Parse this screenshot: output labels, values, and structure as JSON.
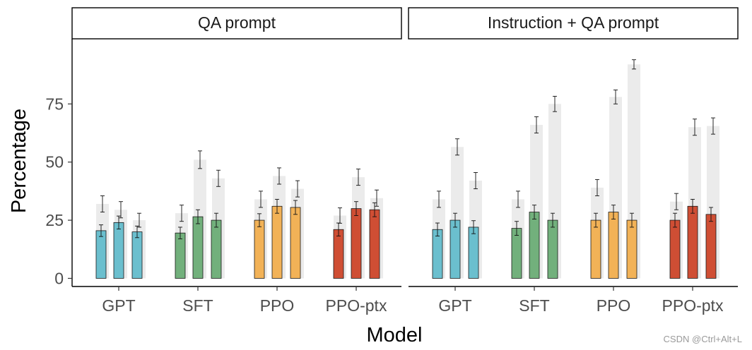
{
  "chart_data": {
    "type": "bar",
    "xlabel": "Model",
    "ylabel": "Percentage",
    "ylim": [
      -3.5,
      103
    ],
    "yticks": [
      0,
      25,
      50,
      75
    ],
    "categories": [
      "GPT",
      "SFT",
      "PPO",
      "PPO-ptx"
    ],
    "colors": {
      "GPT": "#6bbfce",
      "SFT": "#72b07c",
      "PPO": "#f2b257",
      "PPO-ptx": "#cf4e34",
      "background": "#ebebeb"
    },
    "facets": [
      {
        "title": "QA prompt",
        "background_bars": {
          "GPT": [
            {
              "value": 32,
              "err": 3.5
            },
            {
              "value": 29.5,
              "err": 3.5
            },
            {
              "value": 25,
              "err": 3
            }
          ],
          "SFT": [
            {
              "value": 28,
              "err": 3.5
            },
            {
              "value": 51,
              "err": 3.8
            },
            {
              "value": 43,
              "err": 3.5
            }
          ],
          "PPO": [
            {
              "value": 34,
              "err": 3.5
            },
            {
              "value": 44,
              "err": 3.5
            },
            {
              "value": 38.5,
              "err": 3.5
            }
          ],
          "PPO-ptx": [
            {
              "value": 27,
              "err": 3.3
            },
            {
              "value": 43.5,
              "err": 3.5
            },
            {
              "value": 34.5,
              "err": 3.5
            }
          ]
        },
        "bars": {
          "GPT": [
            {
              "value": 20.5,
              "err": 2.5
            },
            {
              "value": 24,
              "err": 2.8
            },
            {
              "value": 20,
              "err": 2.5
            }
          ],
          "SFT": [
            {
              "value": 19.5,
              "err": 2.5
            },
            {
              "value": 26.5,
              "err": 3
            },
            {
              "value": 25,
              "err": 3
            }
          ],
          "PPO": [
            {
              "value": 25,
              "err": 2.8
            },
            {
              "value": 31,
              "err": 3
            },
            {
              "value": 30.5,
              "err": 3
            }
          ],
          "PPO-ptx": [
            {
              "value": 21,
              "err": 2.8
            },
            {
              "value": 30,
              "err": 3
            },
            {
              "value": 29.5,
              "err": 3
            }
          ]
        }
      },
      {
        "title": "Instruction + QA prompt",
        "background_bars": {
          "GPT": [
            {
              "value": 34,
              "err": 3.5
            },
            {
              "value": 56.5,
              "err": 3.5
            },
            {
              "value": 42,
              "err": 3.5
            }
          ],
          "SFT": [
            {
              "value": 34,
              "err": 3.5
            },
            {
              "value": 66,
              "err": 3.5
            },
            {
              "value": 75,
              "err": 3.3
            }
          ],
          "PPO": [
            {
              "value": 39,
              "err": 3.5
            },
            {
              "value": 78,
              "err": 3
            },
            {
              "value": 92,
              "err": 2
            }
          ],
          "PPO-ptx": [
            {
              "value": 33,
              "err": 3.5
            },
            {
              "value": 65,
              "err": 3.5
            },
            {
              "value": 65.5,
              "err": 3.5
            }
          ]
        },
        "bars": {
          "GPT": [
            {
              "value": 21,
              "err": 2.8
            },
            {
              "value": 25,
              "err": 3
            },
            {
              "value": 22,
              "err": 2.8
            }
          ],
          "SFT": [
            {
              "value": 21.5,
              "err": 3
            },
            {
              "value": 28.5,
              "err": 3
            },
            {
              "value": 25,
              "err": 3
            }
          ],
          "PPO": [
            {
              "value": 25,
              "err": 3
            },
            {
              "value": 28.5,
              "err": 3
            },
            {
              "value": 25,
              "err": 3
            }
          ],
          "PPO-ptx": [
            {
              "value": 25,
              "err": 3
            },
            {
              "value": 31,
              "err": 3
            },
            {
              "value": 27.5,
              "err": 3
            }
          ]
        }
      }
    ]
  },
  "watermark": "CSDN @Ctrl+Alt+L"
}
